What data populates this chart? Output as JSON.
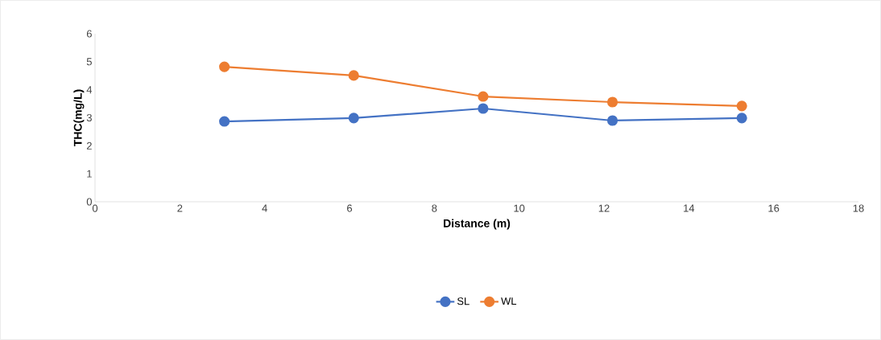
{
  "chart_data": {
    "type": "line",
    "xlabel": "Distance (m)",
    "ylabel": "THC(mg/L)",
    "xlim": [
      0,
      18
    ],
    "xticks": [
      0,
      2,
      4,
      6,
      8,
      10,
      12,
      14,
      16,
      18
    ],
    "ylim": [
      0,
      6
    ],
    "yticks": [
      0,
      1,
      2,
      3,
      4,
      5,
      6
    ],
    "grid": false,
    "legend": "bottom",
    "marker": "circle",
    "line_style": "solid",
    "series": [
      {
        "name": "SL",
        "color": "#4472c4",
        "x": [
          3.05,
          6.1,
          9.15,
          12.2,
          15.25
        ],
        "values": [
          2.87,
          2.99,
          3.33,
          2.9,
          2.99
        ]
      },
      {
        "name": "WL",
        "color": "#ed7d31",
        "x": [
          3.05,
          6.1,
          9.15,
          12.2,
          15.25
        ],
        "values": [
          4.82,
          4.51,
          3.76,
          3.56,
          3.42
        ]
      }
    ]
  }
}
